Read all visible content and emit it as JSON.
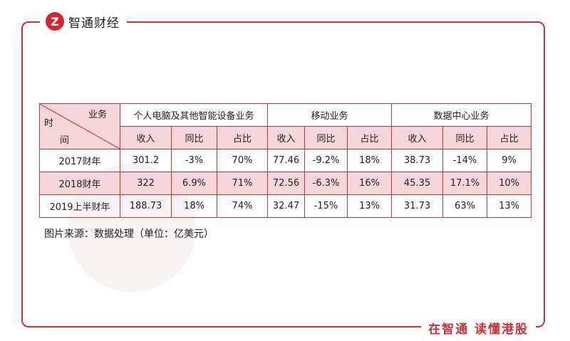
{
  "brand": {
    "logo_letter": "Z",
    "name": "智通财经"
  },
  "slogan": "在智通 读懂港股",
  "table": {
    "corner": {
      "business": "业务",
      "time_1": "时",
      "time_2": "间"
    },
    "groups": [
      "个人电脑及其他智能设备业务",
      "移动业务",
      "数据中心业务"
    ],
    "subheaders": [
      "收入",
      "同比",
      "占比",
      "收入",
      "同比",
      "占比",
      "收入",
      "同比",
      "占比"
    ],
    "rows": [
      {
        "label": "2017财年",
        "cells": [
          "301.2",
          "-3%",
          "70%",
          "77.46",
          "-9.2%",
          "18%",
          "38.73",
          "-14%",
          "9%"
        ]
      },
      {
        "label": "2018财年",
        "cells": [
          "322",
          "6.9%",
          "71%",
          "72.56",
          "-6.3%",
          "16%",
          "45.35",
          "17.1%",
          "10%"
        ]
      },
      {
        "label": "2019上半财年",
        "cells": [
          "188.73",
          "18%",
          "74%",
          "32.47",
          "-15%",
          "13%",
          "31.73",
          "63%",
          "13%"
        ]
      }
    ]
  },
  "source_note": "图片来源：数据处理（单位：亿美元）",
  "colors": {
    "accent": "#c8323b",
    "header_fill": "#f6d6d8"
  }
}
